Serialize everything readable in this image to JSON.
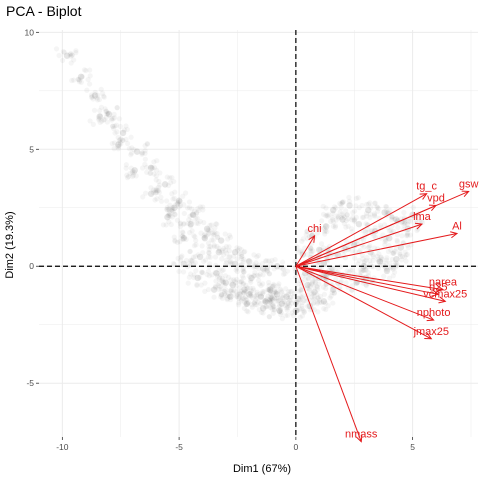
{
  "chart_data": {
    "type": "scatter",
    "title": "PCA - Biplot",
    "xlabel": "Dim1 (67%)",
    "ylabel": "Dim2 (19.3%)",
    "xlim": [
      -11.0,
      7.8
    ],
    "ylim": [
      -7.3,
      10.1
    ],
    "x_ticks": [
      -10,
      -5,
      0,
      5
    ],
    "x_tick_labels": [
      "-10",
      "-5",
      "0",
      "5"
    ],
    "y_ticks": [
      -5,
      0,
      5,
      10
    ],
    "y_tick_labels": [
      "-5",
      "0",
      "5",
      "10"
    ],
    "grid": true,
    "reference_lines": {
      "x": 0,
      "y": 0,
      "style": "dashed"
    },
    "colors": {
      "points": "#333333",
      "arrows": "#e41a1c",
      "grid": "#ebebeb"
    },
    "point_cloud": [
      {
        "x": -9.8,
        "y": 9.0
      },
      {
        "x": -9.2,
        "y": 8.1
      },
      {
        "x": -8.6,
        "y": 7.3
      },
      {
        "x": -8.0,
        "y": 6.5
      },
      {
        "x": -7.4,
        "y": 5.7
      },
      {
        "x": -6.8,
        "y": 4.9
      },
      {
        "x": -6.2,
        "y": 4.2
      },
      {
        "x": -5.6,
        "y": 3.5
      },
      {
        "x": -5.0,
        "y": 2.8
      },
      {
        "x": -4.4,
        "y": 2.2
      },
      {
        "x": -3.8,
        "y": 1.6
      },
      {
        "x": -3.2,
        "y": 1.1
      },
      {
        "x": -2.6,
        "y": 0.6
      },
      {
        "x": -2.0,
        "y": 0.2
      },
      {
        "x": -1.4,
        "y": -0.1
      },
      {
        "x": -0.8,
        "y": 0.0
      },
      {
        "x": -8.4,
        "y": 6.4
      },
      {
        "x": -7.6,
        "y": 5.2
      },
      {
        "x": -6.9,
        "y": 4.1
      },
      {
        "x": -6.2,
        "y": 3.1
      },
      {
        "x": -5.5,
        "y": 2.1
      },
      {
        "x": -4.8,
        "y": 1.2
      },
      {
        "x": -4.1,
        "y": 0.4
      },
      {
        "x": -3.4,
        "y": -0.3
      },
      {
        "x": -2.7,
        "y": -0.8
      },
      {
        "x": -2.0,
        "y": -1.2
      },
      {
        "x": -1.3,
        "y": -1.5
      },
      {
        "x": -0.6,
        "y": -1.6
      },
      {
        "x": 0.1,
        "y": -1.4
      },
      {
        "x": -5.2,
        "y": 2.5
      },
      {
        "x": -4.5,
        "y": 1.8
      },
      {
        "x": -3.9,
        "y": 1.2
      },
      {
        "x": -3.3,
        "y": 0.6
      },
      {
        "x": -2.6,
        "y": 0.1
      },
      {
        "x": -1.9,
        "y": -0.5
      },
      {
        "x": -1.1,
        "y": -1.0
      },
      {
        "x": -0.4,
        "y": -1.3
      },
      {
        "x": -4.8,
        "y": 0.1
      },
      {
        "x": -4.2,
        "y": -0.5
      },
      {
        "x": -3.5,
        "y": -1.0
      },
      {
        "x": -2.8,
        "y": -1.3
      },
      {
        "x": -2.1,
        "y": -1.6
      },
      {
        "x": -1.4,
        "y": -1.8
      },
      {
        "x": -0.7,
        "y": -1.9
      },
      {
        "x": 0.0,
        "y": -1.9
      },
      {
        "x": 0.6,
        "y": -1.7
      },
      {
        "x": 1.2,
        "y": -1.5
      },
      {
        "x": -3.0,
        "y": -0.7
      },
      {
        "x": -2.2,
        "y": -1.0
      },
      {
        "x": -1.5,
        "y": -1.3
      },
      {
        "x": -0.8,
        "y": -1.2
      },
      {
        "x": 0.5,
        "y": -0.8
      },
      {
        "x": 1.0,
        "y": -0.5
      },
      {
        "x": 1.5,
        "y": -0.3
      },
      {
        "x": 2.0,
        "y": -0.4
      },
      {
        "x": 2.6,
        "y": -0.7
      },
      {
        "x": 3.0,
        "y": -0.5
      },
      {
        "x": 0.8,
        "y": -1.1
      },
      {
        "x": 1.6,
        "y": -1.0
      },
      {
        "x": 0.3,
        "y": 0.5
      },
      {
        "x": 1.0,
        "y": 0.7
      },
      {
        "x": 1.8,
        "y": 0.5
      },
      {
        "x": 2.5,
        "y": 0.9
      },
      {
        "x": 3.2,
        "y": 0.6
      },
      {
        "x": 0.7,
        "y": 1.3
      },
      {
        "x": 1.3,
        "y": 1.7
      },
      {
        "x": 2.0,
        "y": 2.0
      },
      {
        "x": 2.7,
        "y": 1.8
      },
      {
        "x": 3.4,
        "y": 1.5
      },
      {
        "x": 4.0,
        "y": 1.2
      },
      {
        "x": 4.5,
        "y": 0.8
      },
      {
        "x": 4.8,
        "y": 1.6
      },
      {
        "x": 5.0,
        "y": 2.2
      },
      {
        "x": 3.8,
        "y": 2.3
      },
      {
        "x": 3.1,
        "y": 2.4
      },
      {
        "x": 2.3,
        "y": 2.6
      },
      {
        "x": 1.6,
        "y": 2.4
      },
      {
        "x": 4.3,
        "y": 2.0
      },
      {
        "x": 3.6,
        "y": 0.2
      },
      {
        "x": 2.9,
        "y": 0.0
      },
      {
        "x": 0.4,
        "y": -0.3
      },
      {
        "x": 1.2,
        "y": 0.1
      },
      {
        "x": 3.9,
        "y": -0.2
      },
      {
        "x": 4.3,
        "y": 0.3
      }
    ],
    "arrows": [
      {
        "label": "chi",
        "x": 0.8,
        "y": 1.3
      },
      {
        "label": "tg_c",
        "x": 5.6,
        "y": 3.1
      },
      {
        "label": "gsw",
        "x": 7.4,
        "y": 3.2
      },
      {
        "label": "vpd",
        "x": 6.0,
        "y": 2.6
      },
      {
        "label": "lma",
        "x": 5.4,
        "y": 1.8
      },
      {
        "label": "Al",
        "x": 6.9,
        "y": 1.4
      },
      {
        "label": "narea",
        "x": 6.3,
        "y": -1.0
      },
      {
        "label": "vcmax25",
        "x": 6.4,
        "y": -1.5
      },
      {
        "label": "d25",
        "x": 6.1,
        "y": -1.2
      },
      {
        "label": "nphoto",
        "x": 5.9,
        "y": -2.3
      },
      {
        "label": "jmax25",
        "x": 5.8,
        "y": -3.1
      },
      {
        "label": "nmass",
        "x": 2.8,
        "y": -7.5
      }
    ]
  }
}
